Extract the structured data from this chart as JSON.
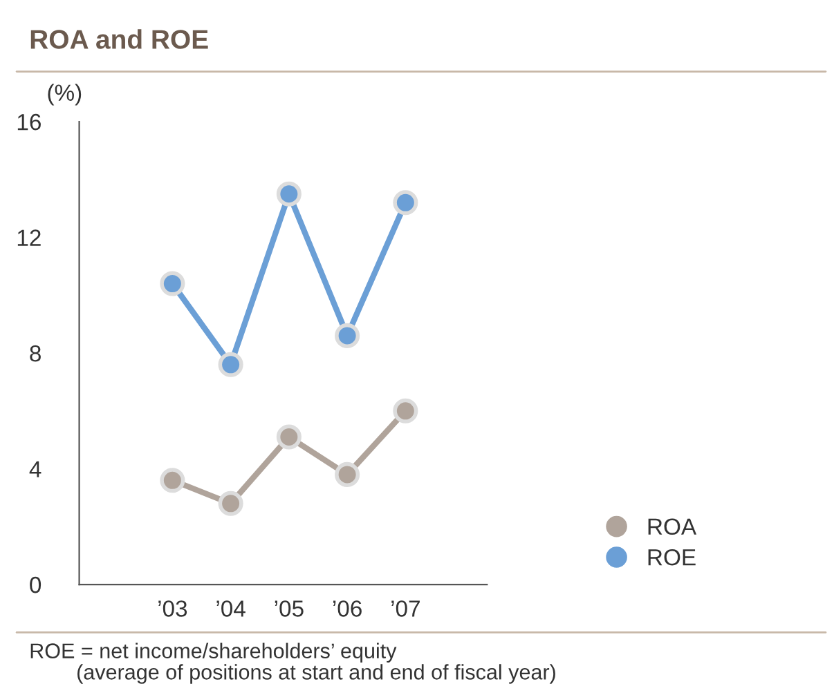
{
  "chart_data": {
    "type": "line",
    "title": "ROA and ROE",
    "ylabel": "(%)",
    "categories": [
      "’03",
      "’04",
      "’05",
      "’06",
      "’07"
    ],
    "series": [
      {
        "name": "ROA",
        "color": "#b0a49b",
        "values": [
          3.6,
          2.8,
          5.1,
          3.8,
          6.0
        ]
      },
      {
        "name": "ROE",
        "color": "#6b9fd6",
        "values": [
          10.4,
          7.6,
          13.5,
          8.6,
          13.2
        ]
      }
    ],
    "ylim": [
      0,
      16
    ],
    "yticks": [
      0,
      4,
      8,
      12,
      16
    ],
    "grid": false,
    "legend": "bottom right",
    "marker": "circle",
    "line_style": "solid",
    "annotations": [
      "ROE = net income/shareholders’ equity\n        (average of positions at start and end of fiscal year)"
    ]
  }
}
